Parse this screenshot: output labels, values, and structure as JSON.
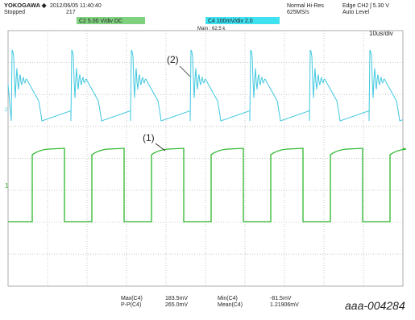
{
  "header": {
    "brand": "YOKOGAWA ◆",
    "status": "Stopped",
    "datetime": "2012/06/05 11:40:40",
    "count": "217",
    "mode": "Normal Hi-Res",
    "rate": "625MS/s",
    "trigger": "Edge CH2 ʃ 5.30 V",
    "trigger_mode": "Auto Level"
  },
  "channels": {
    "c2": "C2 5.00 V/div DC",
    "c4": "C4 100mV/div 2.0",
    "main": "Main : 62.5 k",
    "timebase": "10us/div",
    "marker1": "1",
    "marker2": "2"
  },
  "annotations": [
    "(2)",
    "(1)"
  ],
  "measurements": [
    [
      "Max(C4)",
      "183.5mV",
      "Min(C4)",
      "-81.5mV"
    ],
    [
      "P-P(C4)",
      "265.0mV",
      "Mean(C4)",
      "1.21906mV"
    ]
  ],
  "figure_id": "aaa-004284"
}
